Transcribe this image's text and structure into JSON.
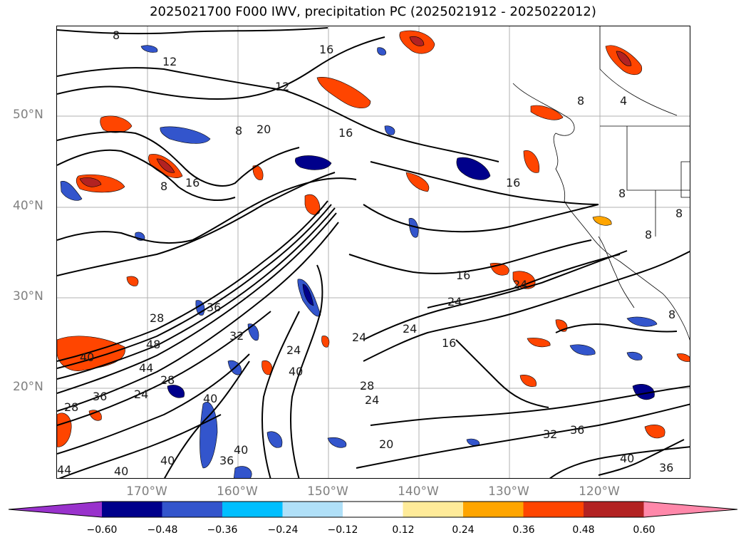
{
  "title": "2025021700 F000 IWV, precipitation PC (2025021912 - 2025022012)",
  "latitudes": [
    "50°N",
    "40°N",
    "30°N",
    "20°N"
  ],
  "longitudes": [
    "170°W",
    "160°W",
    "150°W",
    "140°W",
    "130°W",
    "120°W"
  ],
  "contour_labels": [
    "8",
    "12",
    "16",
    "20",
    "24",
    "28",
    "32",
    "36",
    "40",
    "44",
    "48"
  ],
  "colorbar": {
    "ticks": [
      "−0.60",
      "−0.48",
      "−0.36",
      "−0.24",
      "−0.12",
      "0.12",
      "0.24",
      "0.36",
      "0.48",
      "0.60"
    ],
    "colors": [
      "#9932cc",
      "#00008b",
      "#3355cc",
      "#00bfff",
      "#b0e0f8",
      "#ffffff",
      "#ffeb99",
      "#ffa500",
      "#ff4500",
      "#b22222",
      "#ff88aa"
    ]
  }
}
